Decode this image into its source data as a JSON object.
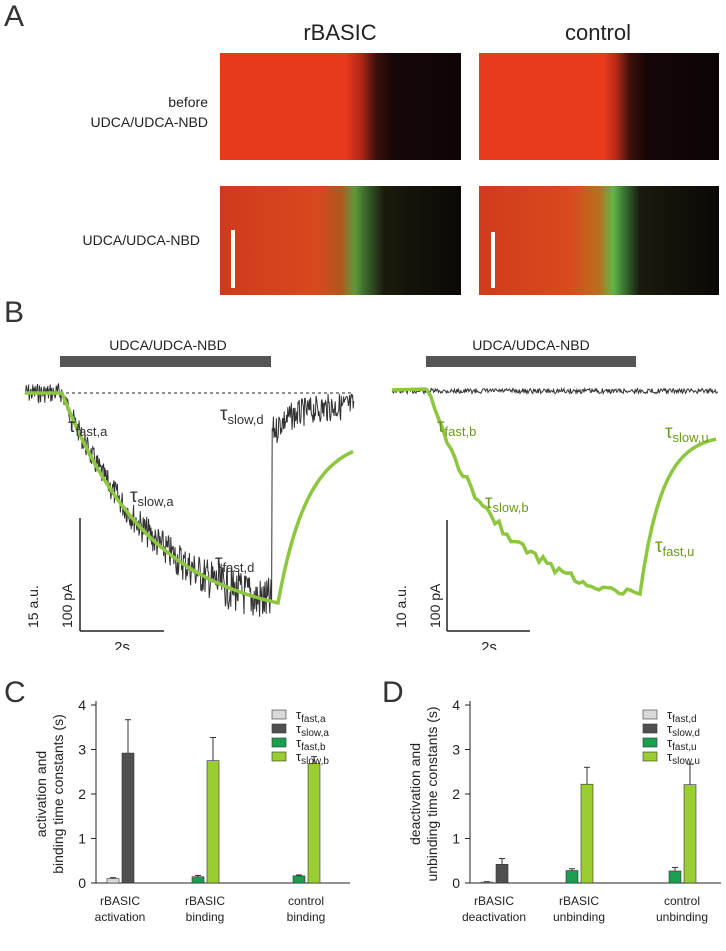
{
  "panel_a": {
    "letter": "A",
    "columns": [
      "rBASIC",
      "control"
    ],
    "row_before": [
      "before",
      "UDCA/UDCA-NBD"
    ],
    "row_after": "UDCA/UDCA-NBD"
  },
  "panel_b": {
    "letter": "B",
    "left": {
      "bar_label": "UDCA/UDCA-NBD",
      "labels": {
        "fast_a": "τfast,a",
        "slow_a": "τslow,a",
        "fast_d": "τfast,d",
        "slow_d": "τslow,d"
      },
      "scale_y1": "15 a.u.",
      "scale_y2": "100 pA",
      "scale_x": "2s"
    },
    "right": {
      "bar_label": "UDCA/UDCA-NBD",
      "labels": {
        "fast_b": "τfast,b",
        "slow_b": "τslow,b",
        "fast_u": "τfast,u",
        "slow_u": "τslow,u"
      },
      "scale_y1": "10 a.u.",
      "scale_y2": "100 pA",
      "scale_x": "2s"
    }
  },
  "colors": {
    "light_gray": "#d9d9d9",
    "dark_gray": "#505050",
    "green": "#1a9e4f",
    "light_green": "#9acd32",
    "trace_gray": "#333333",
    "trace_green": "#8dc63f"
  },
  "chart_data": [
    {
      "panel": "C",
      "type": "bar",
      "ylabel": [
        "activation and",
        "binding time constants (s)"
      ],
      "ylim": [
        0,
        4
      ],
      "yticks": [
        0,
        1,
        2,
        3,
        4
      ],
      "groups": [
        {
          "label": [
            "rBASIC",
            "activation"
          ],
          "bars": [
            {
              "series": "fast_a",
              "value": 0.1,
              "err": 0.02
            },
            {
              "series": "slow_a",
              "value": 2.92,
              "err": 0.75
            }
          ]
        },
        {
          "label": [
            "rBASIC",
            "binding"
          ],
          "bars": [
            {
              "series": "fast_b",
              "value": 0.14,
              "err": 0.03
            },
            {
              "series": "slow_b",
              "value": 2.75,
              "err": 0.52
            }
          ]
        },
        {
          "label": [
            "control",
            "binding"
          ],
          "bars": [
            {
              "series": "fast_b",
              "value": 0.16,
              "err": 0.02
            },
            {
              "series": "slow_b",
              "value": 2.68,
              "err": 0.16
            }
          ]
        }
      ],
      "legend": [
        {
          "key": "fast_a",
          "main": "τ",
          "sub": "fast,a",
          "color": "#d9d9d9"
        },
        {
          "key": "slow_a",
          "main": "τ",
          "sub": "slow,a",
          "color": "#505050"
        },
        {
          "key": "fast_b",
          "main": "τ",
          "sub": "fast,b",
          "color": "#1a9e4f"
        },
        {
          "key": "slow_b",
          "main": "τ",
          "sub": "slow,b",
          "color": "#9acd32"
        }
      ],
      "legend_position": "top-right"
    },
    {
      "panel": "D",
      "type": "bar",
      "ylabel": [
        "deactivation and",
        "unbinding time constants (s)"
      ],
      "ylim": [
        0,
        4
      ],
      "yticks": [
        0,
        1,
        2,
        3,
        4
      ],
      "groups": [
        {
          "label": [
            "rBASIC",
            "deactivation"
          ],
          "bars": [
            {
              "series": "fast_d",
              "value": 0.02,
              "err": 0.01
            },
            {
              "series": "slow_d",
              "value": 0.42,
              "err": 0.13
            }
          ]
        },
        {
          "label": [
            "rBASIC",
            "unbinding"
          ],
          "bars": [
            {
              "series": "fast_u",
              "value": 0.28,
              "err": 0.04
            },
            {
              "series": "slow_u",
              "value": 2.22,
              "err": 0.38
            }
          ]
        },
        {
          "label": [
            "control",
            "unbinding"
          ],
          "bars": [
            {
              "series": "fast_u",
              "value": 0.27,
              "err": 0.08
            },
            {
              "series": "slow_u",
              "value": 2.21,
              "err": 0.46
            }
          ]
        }
      ],
      "legend": [
        {
          "key": "fast_d",
          "main": "τ",
          "sub": "fast,d",
          "color": "#d9d9d9"
        },
        {
          "key": "slow_d",
          "main": "τ",
          "sub": "slow,d",
          "color": "#505050"
        },
        {
          "key": "fast_u",
          "main": "τ",
          "sub": "fast,u",
          "color": "#1a9e4f"
        },
        {
          "key": "slow_u",
          "main": "τ",
          "sub": "slow,u",
          "color": "#9acd32"
        }
      ],
      "legend_position": "top-right"
    }
  ]
}
